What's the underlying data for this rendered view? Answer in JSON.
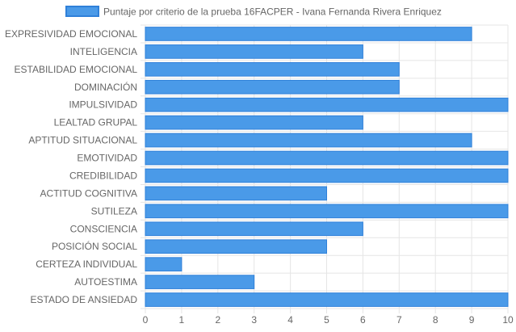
{
  "chart_data": {
    "type": "bar",
    "orientation": "horizontal",
    "title": "",
    "xlabel": "",
    "ylabel": "",
    "xlim": [
      0,
      10
    ],
    "grid": true,
    "legend_position": "top",
    "colors": {
      "bar_fill": "#4a9ae8",
      "bar_border": "#2f80d9",
      "grid": "#e5e5e5",
      "text": "#666666"
    },
    "categories": [
      "EXPRESIVIDAD EMOCIONAL",
      "INTELIGENCIA",
      "ESTABILIDAD EMOCIONAL",
      "DOMINACIÓN",
      "IMPULSIVIDAD",
      "LEALTAD GRUPAL",
      "APTITUD SITUACIONAL",
      "EMOTIVIDAD",
      "CREDIBILIDAD",
      "ACTITUD COGNITIVA",
      "SUTILEZA",
      "CONSCIENCIA",
      "POSICIÓN SOCIAL",
      "CERTEZA INDIVIDUAL",
      "AUTOESTIMA",
      "ESTADO DE ANSIEDAD"
    ],
    "x_ticks": [
      "0",
      "1",
      "2",
      "3",
      "4",
      "5",
      "6",
      "7",
      "8",
      "9",
      "10"
    ],
    "series": [
      {
        "name": "Puntaje por criterio de la prueba 16FACPER - Ivana Fernanda Rivera Enriquez",
        "values": [
          9,
          6,
          7,
          7,
          10,
          6,
          9,
          10,
          10,
          5,
          10,
          6,
          5,
          1,
          3,
          10
        ]
      }
    ]
  }
}
